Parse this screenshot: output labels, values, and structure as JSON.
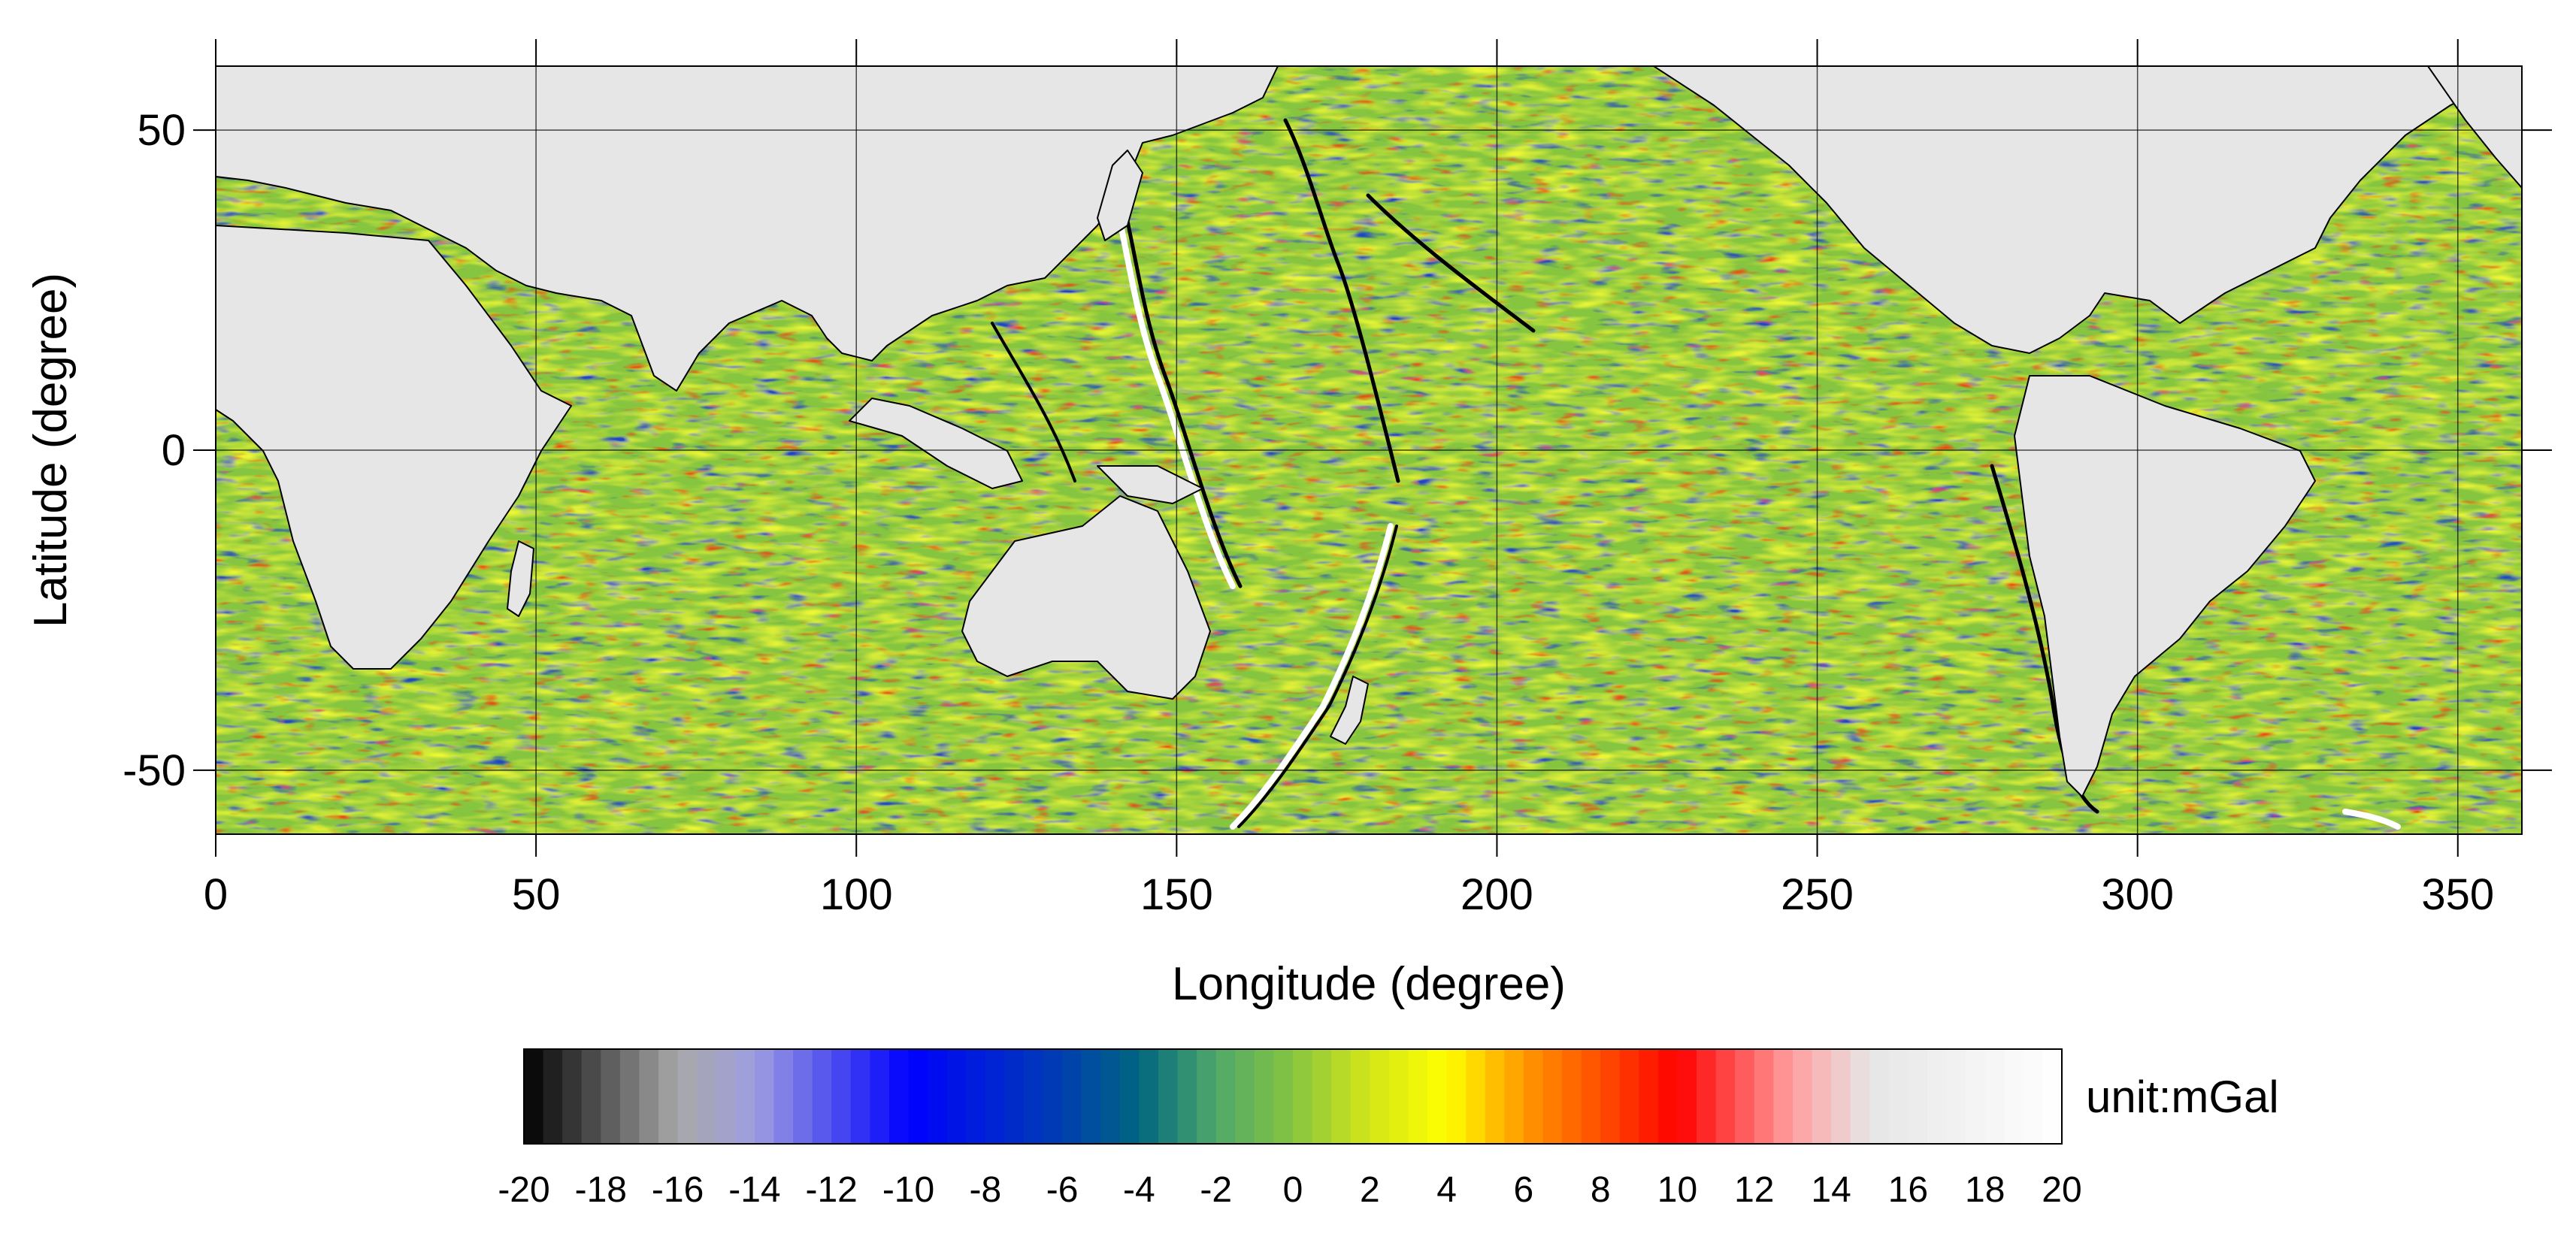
{
  "chart_data": {
    "type": "heatmap",
    "xlabel": "Longitude (degree)",
    "ylabel": "Latitude (degree)",
    "xlim": [
      0,
      360
    ],
    "ylim": [
      -60,
      60
    ],
    "x_ticks": [
      "0",
      "50",
      "100",
      "150",
      "200",
      "250",
      "300",
      "350"
    ],
    "x_tick_values": [
      0,
      50,
      100,
      150,
      200,
      250,
      300,
      350
    ],
    "y_ticks": [
      "50",
      "0",
      "-50"
    ],
    "y_tick_values": [
      50,
      0,
      -50
    ],
    "grid": true,
    "land_color": "#e6e6e6",
    "coast_color": "#000000",
    "colorbar": {
      "min": -20,
      "max": 20,
      "unit_label": "unit:mGal",
      "tick_labels": [
        "-20",
        "-18",
        "-16",
        "-14",
        "-12",
        "-10",
        "-8",
        "-6",
        "-4",
        "-2",
        "0",
        "2",
        "4",
        "6",
        "8",
        "10",
        "12",
        "14",
        "16",
        "18",
        "20"
      ],
      "tick_values": [
        -20,
        -18,
        -16,
        -14,
        -12,
        -10,
        -8,
        -6,
        -4,
        -2,
        0,
        2,
        4,
        6,
        8,
        10,
        12,
        14,
        16,
        18,
        20
      ],
      "color_stops": [
        {
          "value": -20,
          "color": "#000000"
        },
        {
          "value": -16,
          "color": "#a8a8a8"
        },
        {
          "value": -14,
          "color": "#9e9ee0"
        },
        {
          "value": -10,
          "color": "#0000ff"
        },
        {
          "value": -6,
          "color": "#003fb0"
        },
        {
          "value": -4,
          "color": "#006680"
        },
        {
          "value": -2,
          "color": "#4fa86a"
        },
        {
          "value": 0,
          "color": "#86c540"
        },
        {
          "value": 2,
          "color": "#d2e618"
        },
        {
          "value": 4,
          "color": "#ffff00"
        },
        {
          "value": 6,
          "color": "#ff9900"
        },
        {
          "value": 10,
          "color": "#ff0000"
        },
        {
          "value": 13,
          "color": "#ff9f9f"
        },
        {
          "value": 15,
          "color": "#e6e6e6"
        },
        {
          "value": 20,
          "color": "#ffffff"
        }
      ]
    }
  }
}
